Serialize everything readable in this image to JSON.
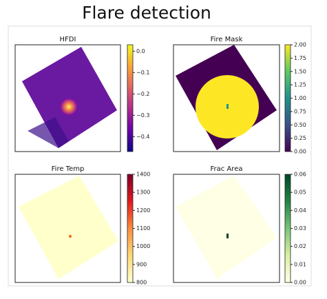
{
  "title": "Flare detection",
  "chart_data": [
    {
      "type": "heatmap",
      "title": "HFDI",
      "colormap": "plasma",
      "clim": [
        -0.47,
        0.03
      ],
      "cticks": [
        {
          "value": 0.0,
          "label": "0.0"
        },
        {
          "value": -0.1,
          "label": "−0.1"
        },
        {
          "value": -0.2,
          "label": "−0.2"
        },
        {
          "value": -0.3,
          "label": "−0.3"
        },
        {
          "value": -0.4,
          "label": "−0.4"
        }
      ]
    },
    {
      "type": "heatmap",
      "title": "Fire Mask",
      "colormap": "viridis",
      "clim": [
        0,
        2
      ],
      "cticks": [
        {
          "value": 0,
          "label": "0.00"
        },
        {
          "value": 0.25,
          "label": "0.25"
        },
        {
          "value": 0.5,
          "label": "0.50"
        },
        {
          "value": 0.75,
          "label": "0.75"
        },
        {
          "value": 1,
          "label": "1.00"
        },
        {
          "value": 1.25,
          "label": "1.25"
        },
        {
          "value": 1.5,
          "label": "1.50"
        },
        {
          "value": 1.75,
          "label": "1.75"
        },
        {
          "value": 2,
          "label": "2.00"
        }
      ]
    },
    {
      "type": "heatmap",
      "title": "Fire Temp",
      "colormap": "YlOrRd",
      "clim": [
        800,
        1400
      ],
      "cticks": [
        800,
        900,
        1000,
        1100,
        1200,
        1300,
        1400
      ]
    },
    {
      "type": "heatmap",
      "title": "Frac Area",
      "colormap": "YlGn",
      "clim": [
        0,
        0.06
      ],
      "cticks": [
        {
          "value": 0,
          "label": "0.00"
        },
        {
          "value": 0.01,
          "label": "0.01"
        },
        {
          "value": 0.02,
          "label": "0.02"
        },
        {
          "value": 0.03,
          "label": "0.03"
        },
        {
          "value": 0.04,
          "label": "0.04"
        },
        {
          "value": 0.05,
          "label": "0.05"
        },
        {
          "value": 0.06,
          "label": "0.06"
        }
      ]
    }
  ]
}
